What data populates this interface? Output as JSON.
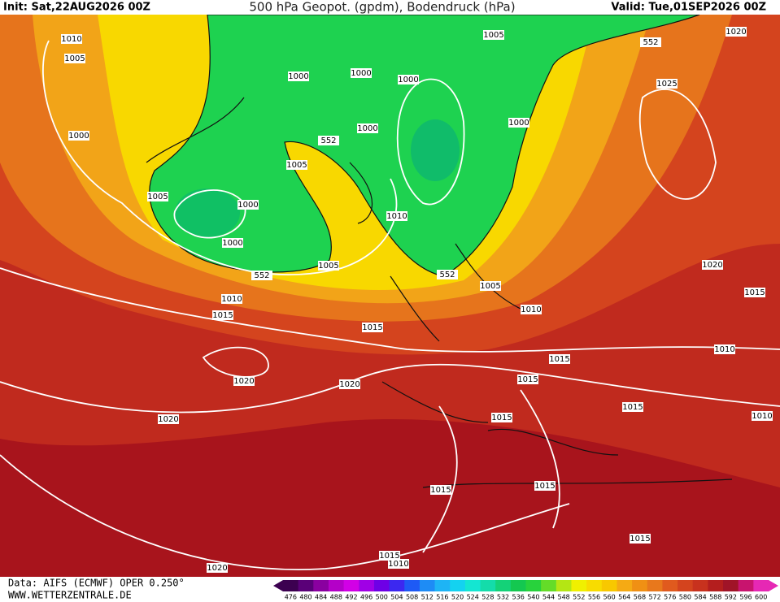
{
  "header": {
    "init": "Init: Sat,22AUG2026 00Z",
    "title": "500 hPa Geopot. (gpdm), Bodendruck (hPa)",
    "valid": "Valid: Tue,01SEP2026 00Z"
  },
  "map": {
    "contour_labels": [
      "1010",
      "1005",
      "1000",
      "1005",
      "1000",
      "1000",
      "552",
      "1005",
      "1010",
      "1015",
      "1020",
      "1020",
      "1020",
      "1015",
      "1005",
      "552",
      "1000",
      "1000",
      "1000",
      "1000",
      "1005",
      "552",
      "1020",
      "1025",
      "1000",
      "1010",
      "552",
      "1005",
      "1010",
      "1015",
      "1015",
      "1015",
      "1015",
      "1020",
      "1015",
      "1010",
      "1010",
      "1015",
      "1015",
      "1015",
      "1015",
      "1010",
      "1020"
    ]
  },
  "footer": {
    "data": "Data: AIFS (ECMWF) OPER 0.250°",
    "site": "WWW.WETTERZENTRALE.DE"
  },
  "scale": {
    "values": [
      476,
      480,
      484,
      488,
      492,
      496,
      500,
      504,
      508,
      512,
      516,
      520,
      524,
      528,
      532,
      536,
      540,
      544,
      548,
      552,
      556,
      560,
      564,
      568,
      572,
      576,
      580,
      584,
      588,
      592,
      596,
      600
    ],
    "colors": [
      "#3c0050",
      "#5a0078",
      "#8a00a0",
      "#b400c8",
      "#d200e6",
      "#a000e6",
      "#6e00e6",
      "#3c28f0",
      "#1e5af5",
      "#1e8cf5",
      "#1eb4f5",
      "#14d2f0",
      "#14e6d2",
      "#14dcaa",
      "#14d278",
      "#14c850",
      "#28d23c",
      "#64dc28",
      "#b4e614",
      "#f0f000",
      "#f8dc00",
      "#f8c800",
      "#f5aa14",
      "#f09014",
      "#e8781c",
      "#e05a1e",
      "#d4441e",
      "#c8321e",
      "#b41e1e",
      "#a01428",
      "#c8146e",
      "#e628b4"
    ]
  }
}
